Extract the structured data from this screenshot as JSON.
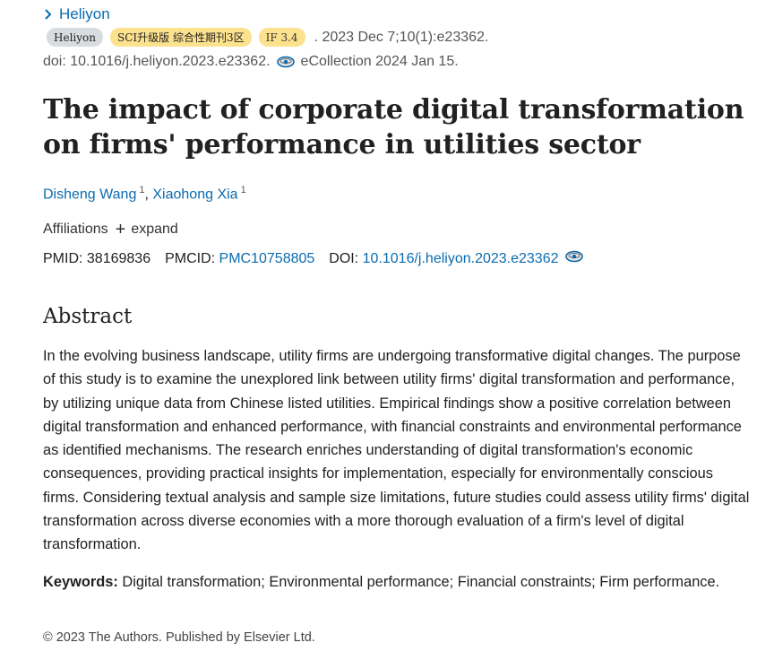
{
  "journal_link": {
    "label": "Heliyon"
  },
  "badges": {
    "journal": "Heliyon",
    "level": "SCI升级版 综合性期刊3区",
    "impact": "IF 3.4"
  },
  "citation": {
    "date_volume": ". 2023 Dec 7;10(1):e23362.",
    "doi_line": "doi: 10.1016/j.heliyon.2023.e23362.",
    "ecollection": "eCollection 2024 Jan 15."
  },
  "article": {
    "title": "The impact of corporate digital transformation on firms' performance in utilities sector"
  },
  "authors": [
    {
      "name": "Disheng Wang",
      "affil_sup": "1"
    },
    {
      "name": "Xiaohong Xia",
      "affil_sup": "1"
    }
  ],
  "affiliations": {
    "label": "Affiliations",
    "expand_label": "expand"
  },
  "identifiers": {
    "pmid_label": "PMID:",
    "pmid_value": "38169836",
    "pmcid_label": "PMCID:",
    "pmcid_value": "PMC10758805",
    "doi_label": "DOI:",
    "doi_value": "10.1016/j.heliyon.2023.e23362"
  },
  "abstract": {
    "heading": "Abstract",
    "text": "In the evolving business landscape, utility firms are undergoing transformative digital changes. The purpose of this study is to examine the unexplored link between utility firms' digital transformation and performance, by utilizing unique data from Chinese listed utilities. Empirical findings show a positive correlation between digital transformation and enhanced performance, with financial constraints and environmental performance as identified mechanisms. The research enriches understanding of digital transformation's economic consequences, providing practical insights for implementation, especially for environmentally conscious firms. Considering textual analysis and sample size limitations, future studies could assess utility firms' digital transformation across diverse economies with a more thorough evaluation of a firm's level of digital transformation."
  },
  "keywords": {
    "label": "Keywords:",
    "text": "Digital transformation; Environmental performance; Financial constraints; Firm performance."
  },
  "copyright": "© 2023 The Authors. Published by Elsevier Ltd.",
  "icons": {
    "chevron": "chevron-right-icon",
    "external": "ecollection-eye-icon",
    "expand": "plus-icon"
  },
  "colors": {
    "link": "#0b6bb0",
    "badge_gray": "#d9dcdf",
    "badge_yellow": "#fde28e",
    "text": "#212121"
  }
}
